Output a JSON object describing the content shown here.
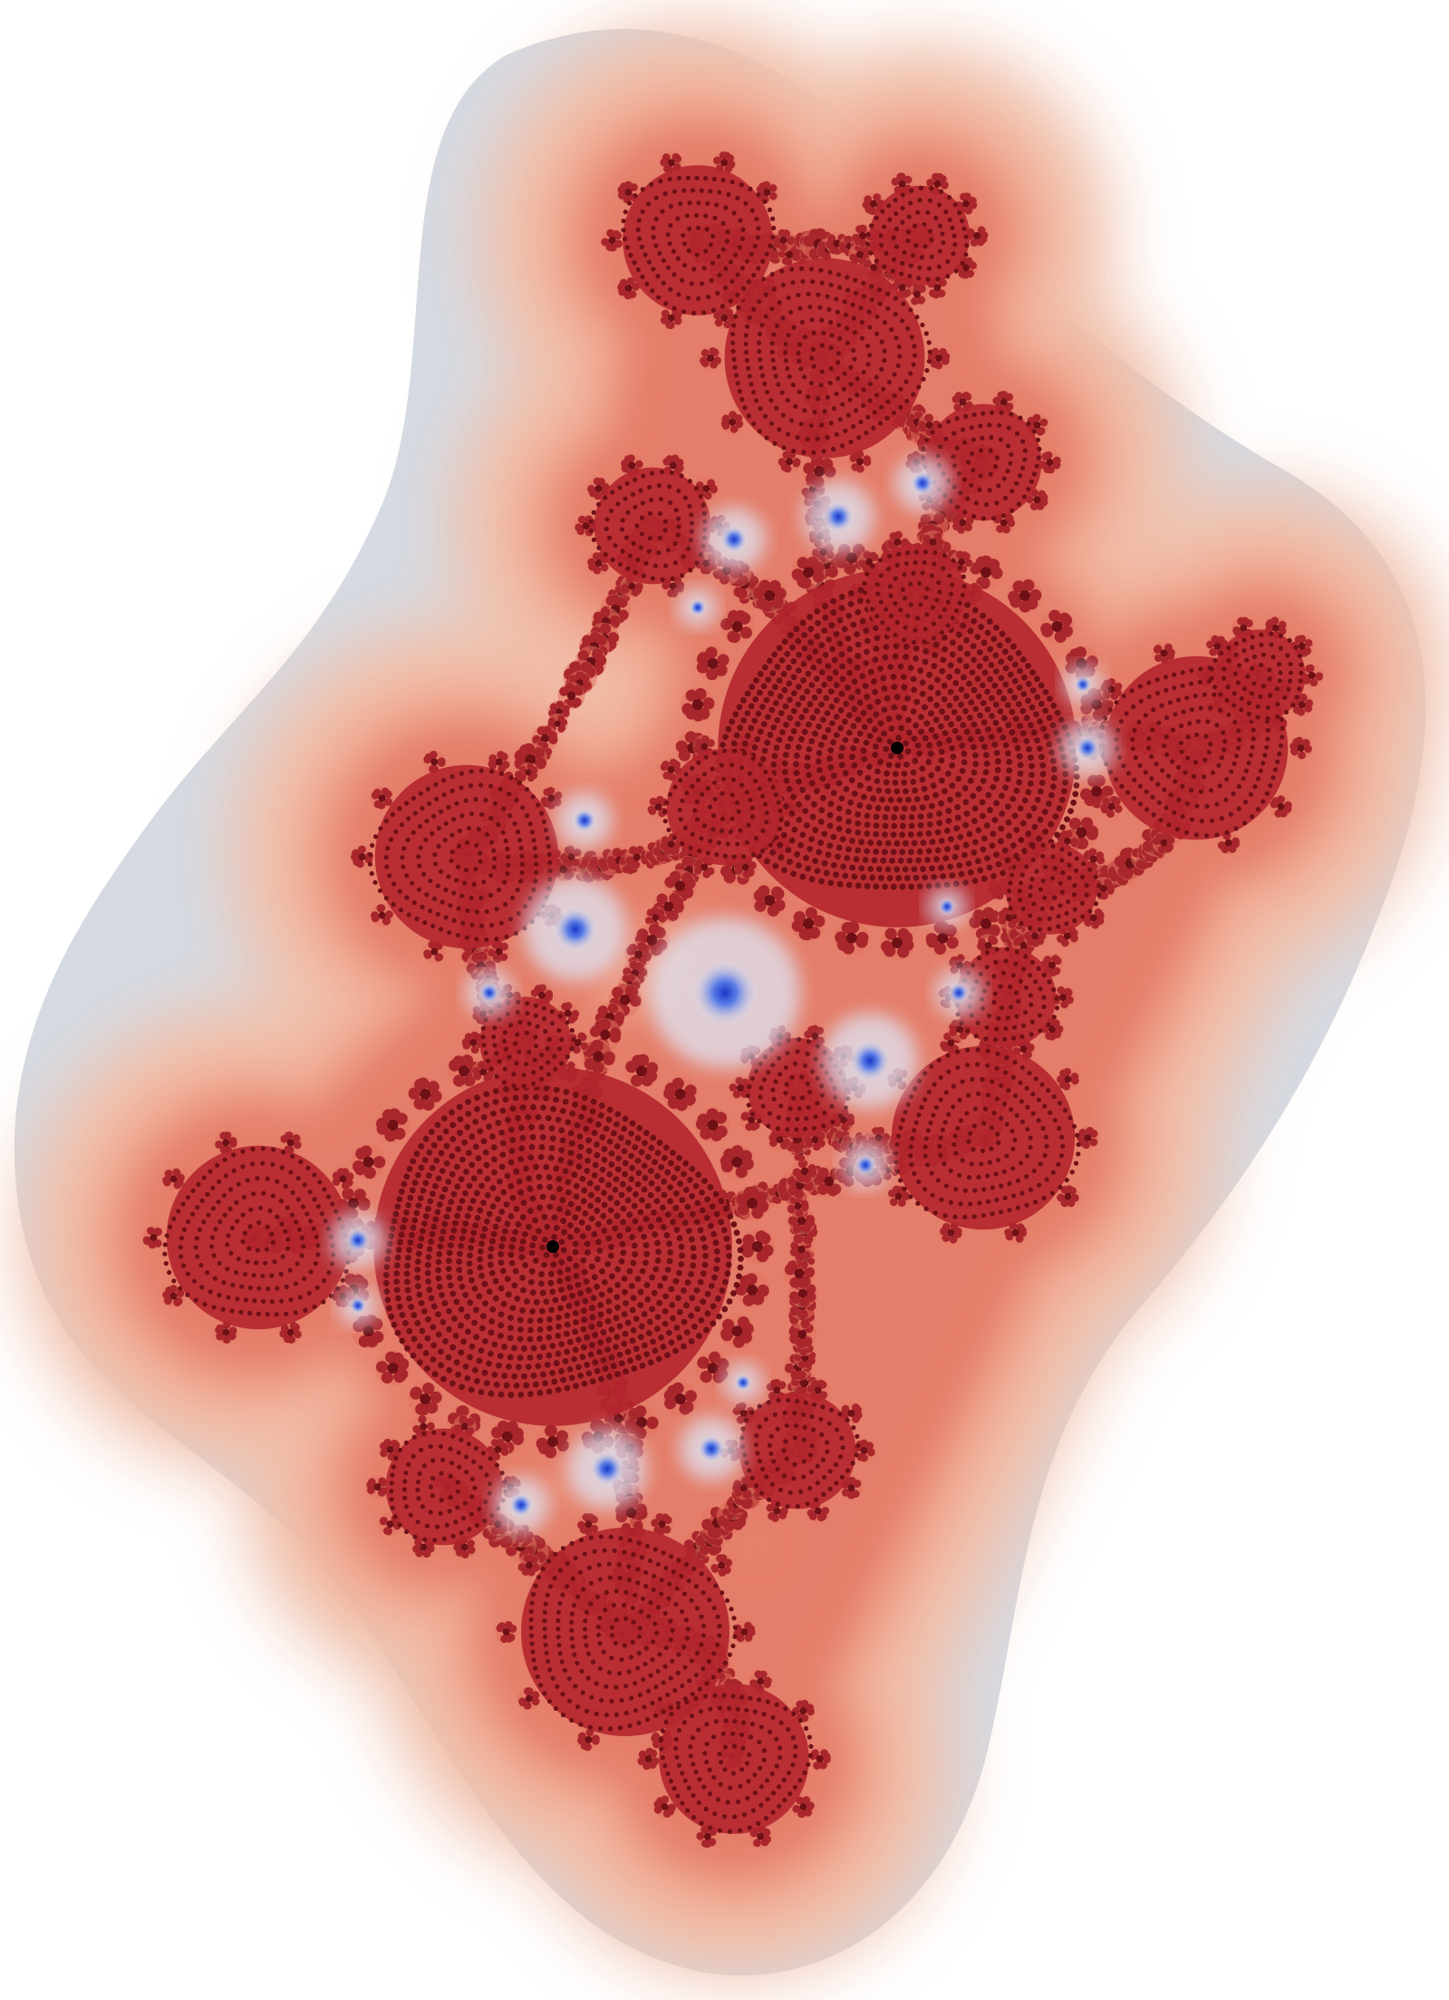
{
  "image": {
    "subject": "julia-set-fractal",
    "palette": {
      "background": "#ffffff",
      "halo_outer": "#d7dbe2",
      "halo_mid": "#efc6b4",
      "glow_inner": "#f0a58f",
      "glow_deep": "#e2735f",
      "filament": "#a8262c",
      "filament_dark": "#6e1016",
      "spiral_core": "#b3262c",
      "center_dot": "#000000",
      "basin_blue": "#2a4fd8",
      "basin_glow": "#dfe7f7"
    }
  }
}
